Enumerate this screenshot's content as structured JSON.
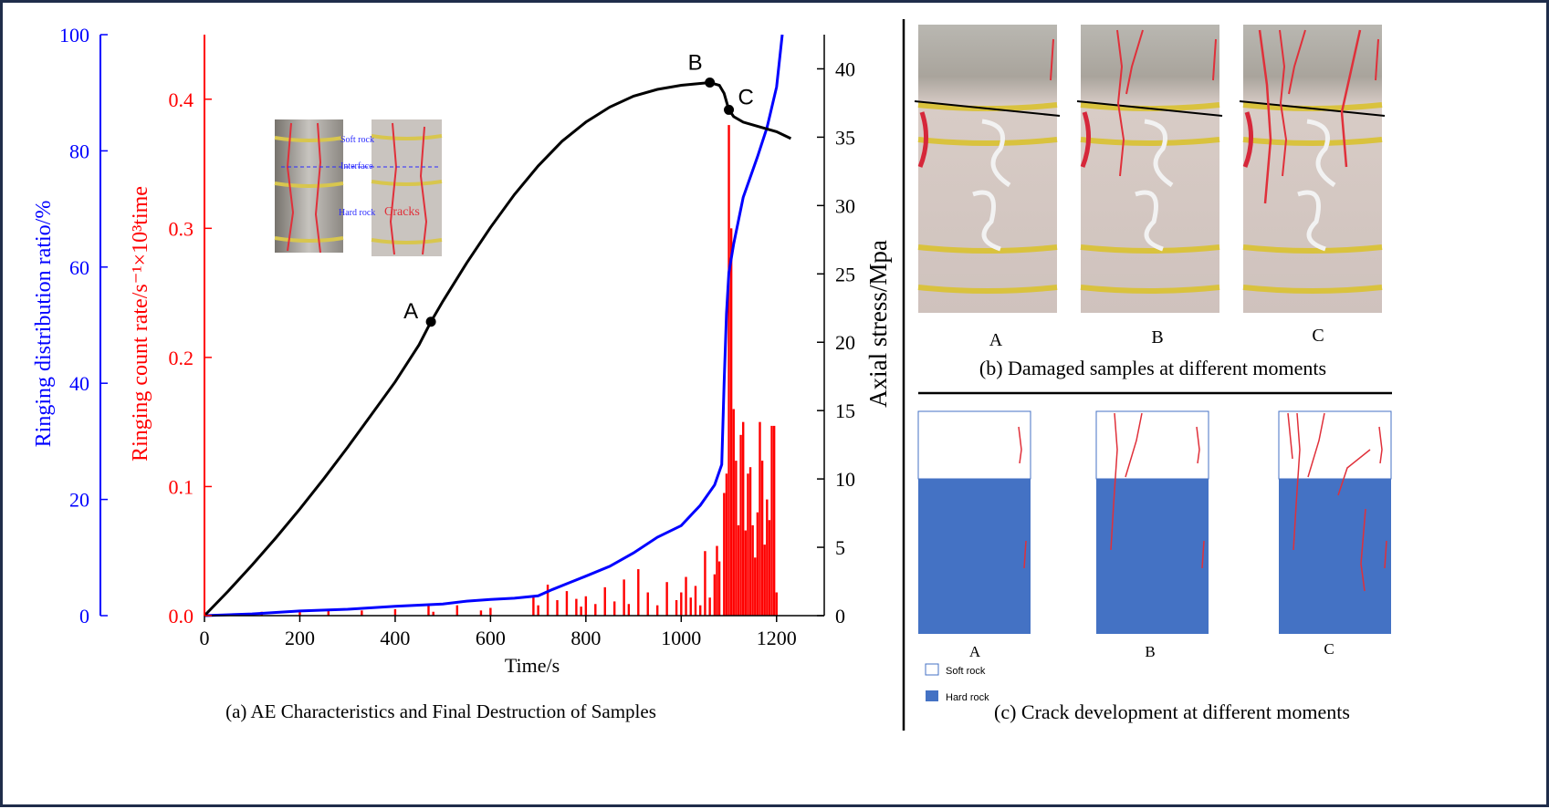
{
  "panels": {
    "a_caption": "(a) AE Characteristics and Final Destruction of Samples",
    "b_caption": "(b) Damaged samples at different moments",
    "c_caption": "(c) Crack development at different moments",
    "photo_labels": [
      "A",
      "B",
      "C"
    ],
    "diagram_labels": [
      "A",
      "B",
      "C"
    ],
    "legend": {
      "soft": "Soft rock",
      "hard": "Hard rock"
    },
    "inset": {
      "soft": "Soft rock",
      "interface": "Interface",
      "hard": "Hard rock",
      "cracks": "Cracks"
    }
  },
  "colors": {
    "stress": "#000000",
    "ratio": "#0000ff",
    "rate": "#ff0000",
    "hard_rock": "#4472c4",
    "crack": "#e0303a",
    "frame": "#1f2d4a"
  },
  "chart_data": {
    "type": "line",
    "xlabel": "Time/s",
    "x_ticks": [
      0,
      200,
      400,
      600,
      800,
      1000,
      1200
    ],
    "xlim": [
      0,
      1300
    ],
    "left_outer_axis": {
      "label": "Ringing distribution ratio/%",
      "ylim": [
        0,
        100
      ],
      "ticks": [
        0,
        20,
        40,
        60,
        80,
        100
      ]
    },
    "left_inner_axis": {
      "label": "Ringing count rate/s⁻¹×10³time",
      "ylim": [
        0,
        0.45
      ],
      "ticks": [
        "0.0",
        "0.1",
        "0.2",
        "0.3",
        "0.4"
      ]
    },
    "right_axis": {
      "label": "Axial stress/Mpa",
      "ylim": [
        0,
        42.5
      ],
      "ticks": [
        0,
        5,
        10,
        15,
        20,
        25,
        30,
        35,
        40
      ]
    },
    "points": [
      {
        "name": "A",
        "x": 475,
        "y": 21.5
      },
      {
        "name": "B",
        "x": 1060,
        "y": 39
      },
      {
        "name": "C",
        "x": 1100,
        "y": 37
      }
    ],
    "series": [
      {
        "axis": "right",
        "x": [
          0,
          50,
          100,
          150,
          200,
          250,
          300,
          350,
          400,
          450,
          475,
          500,
          550,
          600,
          650,
          700,
          750,
          800,
          850,
          900,
          950,
          1000,
          1030,
          1060,
          1080,
          1090,
          1095,
          1100,
          1110,
          1130,
          1160,
          1200,
          1230
        ],
        "y": [
          0,
          1.8,
          3.7,
          5.7,
          7.8,
          10.0,
          12.3,
          14.7,
          17.1,
          19.8,
          21.5,
          23.0,
          25.8,
          28.4,
          30.8,
          32.9,
          34.7,
          36.1,
          37.2,
          38.0,
          38.5,
          38.8,
          38.9,
          39.0,
          38.8,
          38.2,
          37.6,
          37.0,
          36.5,
          36.1,
          35.8,
          35.4,
          34.9
        ]
      },
      {
        "axis": "left_outer",
        "x": [
          0,
          100,
          200,
          300,
          400,
          500,
          550,
          600,
          650,
          700,
          730,
          760,
          800,
          850,
          900,
          950,
          1000,
          1040,
          1070,
          1085,
          1090,
          1095,
          1100,
          1110,
          1130,
          1160,
          1180,
          1200,
          1212
        ],
        "y": [
          0,
          0.3,
          0.8,
          1.1,
          1.6,
          2.0,
          2.5,
          2.8,
          3.0,
          3.4,
          4.5,
          5.5,
          6.8,
          8.5,
          10.8,
          13.5,
          15.5,
          19.0,
          22.5,
          26.0,
          40.0,
          52.0,
          59.0,
          64.0,
          72.0,
          79.0,
          84.0,
          91.0,
          100.0
        ]
      },
      {
        "axis": "left_inner",
        "type": "bar",
        "x": [
          120,
          200,
          260,
          330,
          400,
          470,
          480,
          530,
          580,
          600,
          690,
          700,
          720,
          740,
          760,
          780,
          790,
          800,
          820,
          840,
          860,
          880,
          890,
          910,
          930,
          950,
          970,
          990,
          1000,
          1010,
          1020,
          1030,
          1040,
          1050,
          1060,
          1070,
          1075,
          1080,
          1090,
          1095,
          1100,
          1105,
          1110,
          1115,
          1120,
          1125,
          1130,
          1135,
          1140,
          1145,
          1150,
          1155,
          1160,
          1165,
          1170,
          1175,
          1180,
          1185,
          1190,
          1195,
          1200
        ],
        "y": [
          0.003,
          0.004,
          0.004,
          0.004,
          0.005,
          0.009,
          0.003,
          0.008,
          0.004,
          0.006,
          0.015,
          0.008,
          0.024,
          0.012,
          0.019,
          0.013,
          0.007,
          0.015,
          0.009,
          0.022,
          0.011,
          0.028,
          0.009,
          0.036,
          0.018,
          0.008,
          0.026,
          0.012,
          0.018,
          0.03,
          0.014,
          0.023,
          0.008,
          0.05,
          0.014,
          0.032,
          0.054,
          0.042,
          0.095,
          0.11,
          0.38,
          0.3,
          0.16,
          0.12,
          0.07,
          0.14,
          0.15,
          0.066,
          0.11,
          0.115,
          0.07,
          0.045,
          0.08,
          0.15,
          0.12,
          0.055,
          0.09,
          0.074,
          0.147,
          0.147,
          0.018
        ]
      }
    ]
  }
}
